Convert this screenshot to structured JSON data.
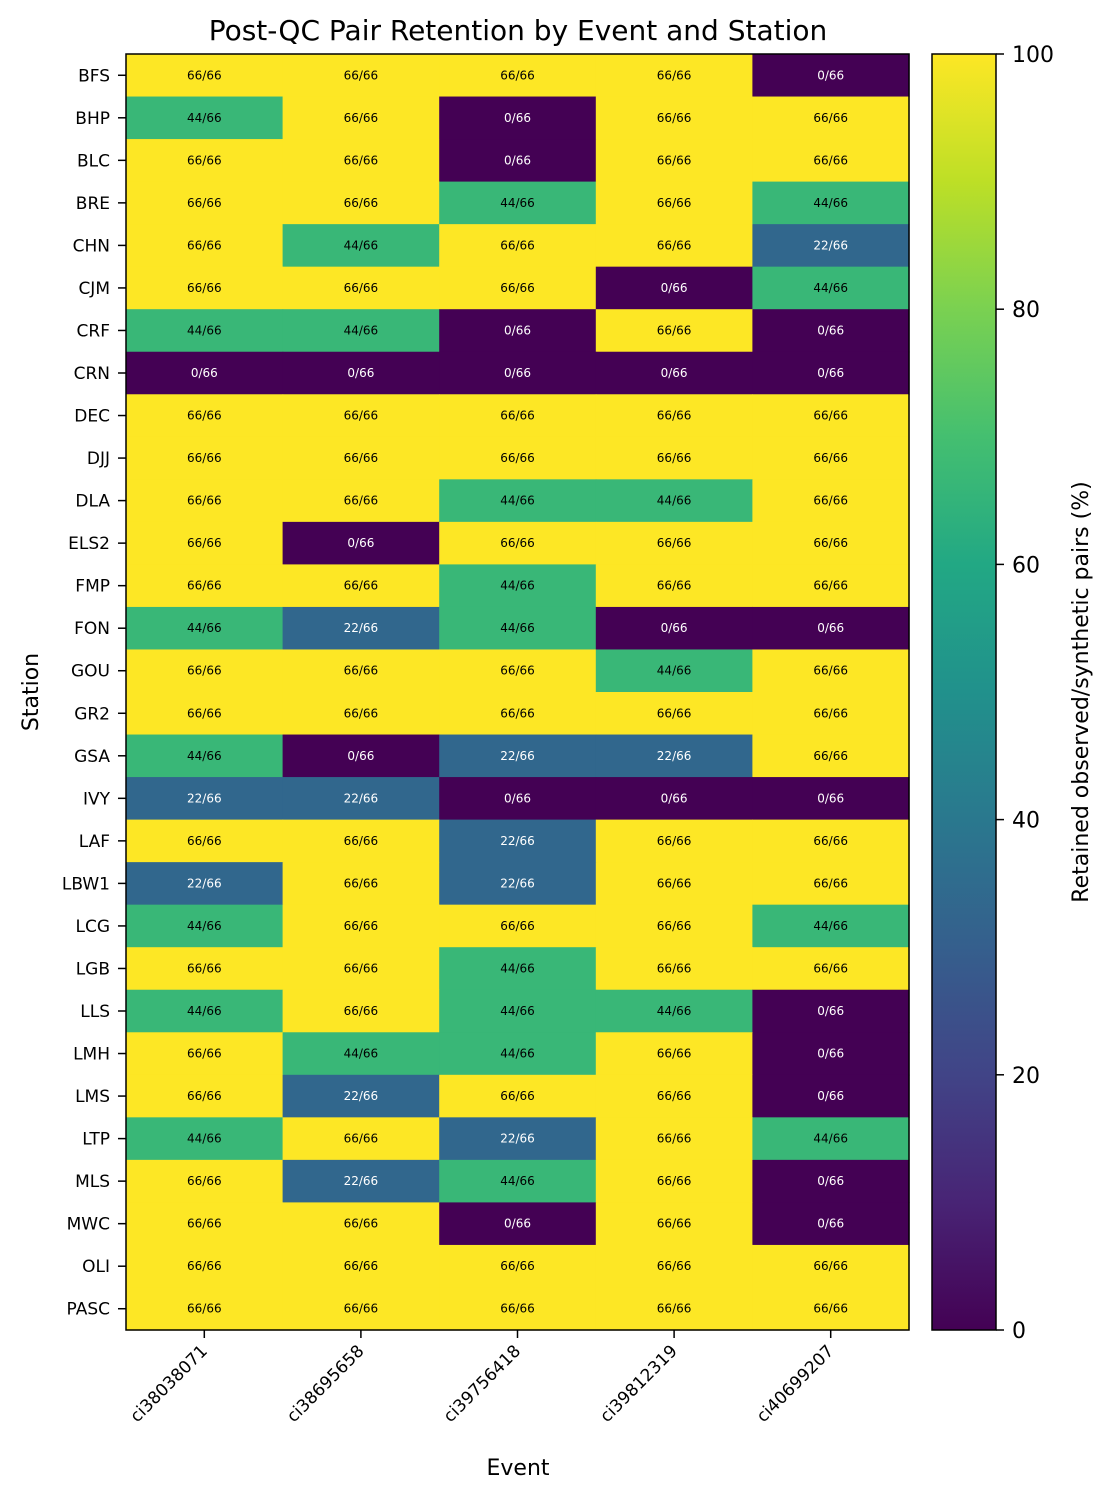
{
  "chart_data": {
    "type": "heatmap",
    "title": "Post-QC Pair Retention by Event and Station",
    "xlabel": "Event",
    "ylabel": "Station",
    "colorbar_label": "Retained observed/synthetic pairs (%)",
    "colormap": "viridis",
    "colorbar_range": [
      0,
      100
    ],
    "colorbar_ticks": [
      "0",
      "20",
      "40",
      "60",
      "80",
      "100"
    ],
    "total_pairs": 66,
    "events": [
      "ci38038071",
      "ci38695658",
      "ci39756418",
      "ci39812319",
      "ci40699207"
    ],
    "stations": [
      "BFS",
      "BHP",
      "BLC",
      "BRE",
      "CHN",
      "CJM",
      "CRF",
      "CRN",
      "DEC",
      "DJJ",
      "DLA",
      "ELS2",
      "FMP",
      "FON",
      "GOU",
      "GR2",
      "GSA",
      "IVY",
      "LAF",
      "LBW1",
      "LCG",
      "LGB",
      "LLS",
      "LMH",
      "LMS",
      "LTP",
      "MLS",
      "MWC",
      "OLI",
      "PASC"
    ],
    "retained": [
      [
        66,
        66,
        66,
        66,
        0
      ],
      [
        44,
        66,
        0,
        66,
        66
      ],
      [
        66,
        66,
        0,
        66,
        66
      ],
      [
        66,
        66,
        44,
        66,
        44
      ],
      [
        66,
        44,
        66,
        66,
        22
      ],
      [
        66,
        66,
        66,
        0,
        44
      ],
      [
        44,
        44,
        0,
        66,
        0
      ],
      [
        0,
        0,
        0,
        0,
        0
      ],
      [
        66,
        66,
        66,
        66,
        66
      ],
      [
        66,
        66,
        66,
        66,
        66
      ],
      [
        66,
        66,
        44,
        44,
        66
      ],
      [
        66,
        0,
        66,
        66,
        66
      ],
      [
        66,
        66,
        44,
        66,
        66
      ],
      [
        44,
        22,
        44,
        0,
        0
      ],
      [
        66,
        66,
        66,
        44,
        66
      ],
      [
        66,
        66,
        66,
        66,
        66
      ],
      [
        44,
        0,
        22,
        22,
        66
      ],
      [
        22,
        22,
        0,
        0,
        0
      ],
      [
        66,
        66,
        22,
        66,
        66
      ],
      [
        22,
        66,
        22,
        66,
        66
      ],
      [
        44,
        66,
        66,
        66,
        44
      ],
      [
        66,
        66,
        44,
        66,
        66
      ],
      [
        44,
        66,
        44,
        44,
        0
      ],
      [
        66,
        44,
        44,
        66,
        0
      ],
      [
        66,
        22,
        66,
        66,
        0
      ],
      [
        44,
        66,
        22,
        66,
        44
      ],
      [
        66,
        22,
        44,
        66,
        0
      ],
      [
        66,
        66,
        0,
        66,
        0
      ],
      [
        66,
        66,
        66,
        66,
        66
      ],
      [
        66,
        66,
        66,
        66,
        66
      ]
    ]
  }
}
